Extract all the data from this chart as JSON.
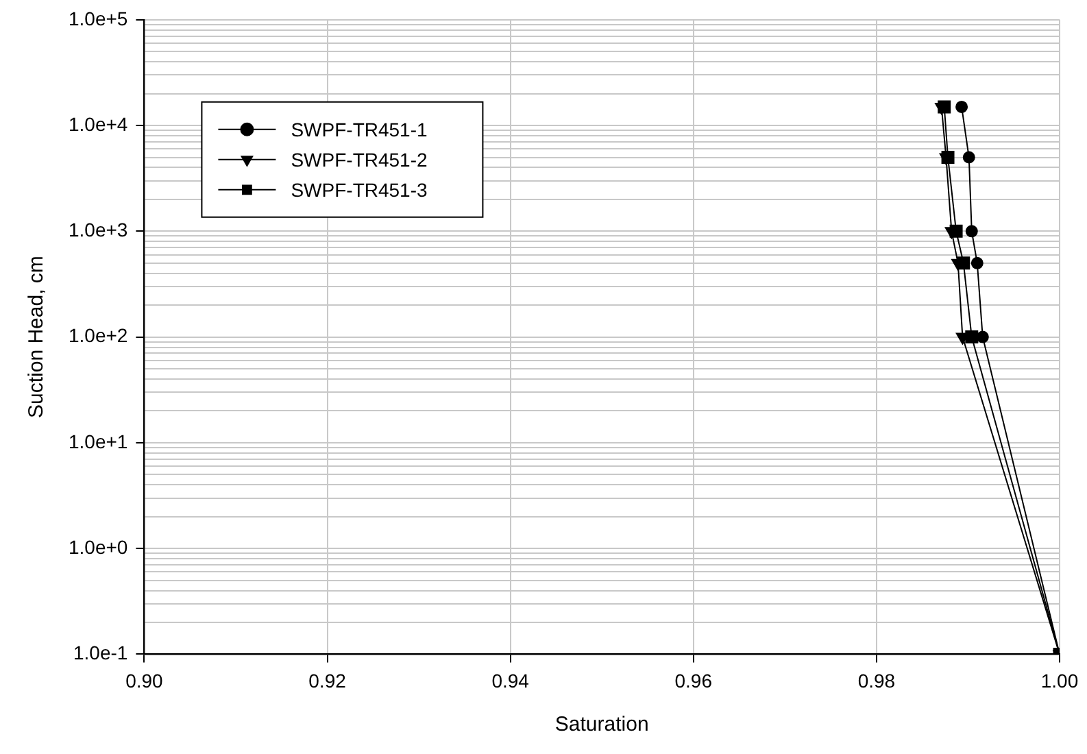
{
  "chart_data": {
    "type": "line",
    "xlabel": "Saturation",
    "ylabel": "Suction Head, cm",
    "log": "y",
    "grid": true,
    "legend": "top left",
    "line_style": "solid",
    "xlim": [
      0.9,
      1.0
    ],
    "xticks": [
      {
        "value": 0.9,
        "label": "0.90"
      },
      {
        "value": 0.92,
        "label": "0.92"
      },
      {
        "value": 0.94,
        "label": "0.94"
      },
      {
        "value": 0.96,
        "label": "0.96"
      },
      {
        "value": 0.98,
        "label": "0.98"
      },
      {
        "value": 1.0,
        "label": "1.00"
      }
    ],
    "ylim": [
      0.1,
      100000
    ],
    "yticks": [
      {
        "value": 0.1,
        "label": "1.0e-1"
      },
      {
        "value": 1,
        "label": "1.0e+0"
      },
      {
        "value": 10,
        "label": "1.0e+1"
      },
      {
        "value": 100,
        "label": "1.0e+2"
      },
      {
        "value": 1000,
        "label": "1.0e+3"
      },
      {
        "value": 10000,
        "label": "1.0e+4"
      },
      {
        "value": 100000,
        "label": "1.0e+5"
      }
    ],
    "series": [
      {
        "name": "SWPF-TR451-1",
        "color": "#000000",
        "marker": "circle",
        "x": [
          0.9893,
          0.9901,
          0.9904,
          0.991,
          0.9916,
          1.0
        ],
        "values": [
          15000,
          5000,
          1000,
          500,
          100,
          0.1
        ]
      },
      {
        "name": "SWPF-TR451-2",
        "color": "#000000",
        "marker": "triangle",
        "x": [
          0.9871,
          0.9876,
          0.9882,
          0.9889,
          0.9894,
          1.0
        ],
        "values": [
          15000,
          5000,
          1000,
          500,
          100,
          0.1
        ]
      },
      {
        "name": "SWPF-TR451-3",
        "color": "#000000",
        "marker": "square",
        "x": [
          0.9874,
          0.9878,
          0.9887,
          0.9895,
          0.9904,
          1.0
        ],
        "values": [
          15000,
          5000,
          1000,
          500,
          100,
          0.1
        ]
      }
    ]
  }
}
